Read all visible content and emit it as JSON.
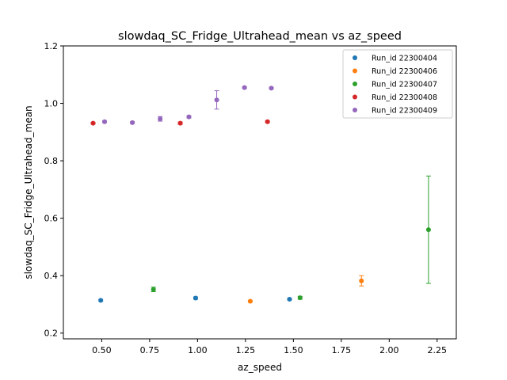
{
  "chart_data": {
    "type": "scatter",
    "title": "slowdaq_SC_Fridge_Ultrahead_mean vs az_speed",
    "xlabel": "az_speed",
    "ylabel": "slowdaq_SC_Fridge_Ultrahead_mean",
    "xlim": [
      0.3,
      2.35
    ],
    "ylim": [
      0.18,
      1.2
    ],
    "xticks": [
      "0.50",
      "0.75",
      "1.00",
      "1.25",
      "1.50",
      "1.75",
      "2.00",
      "2.25"
    ],
    "yticks": [
      "0.2",
      "0.4",
      "0.6",
      "0.8",
      "1.0",
      "1.2"
    ],
    "legend_position": "top-right",
    "grid": false,
    "series": [
      {
        "name": "Run_id 22300404",
        "color": "#1f77b4",
        "points": [
          {
            "x": 0.495,
            "y": 0.314,
            "err": 0.003
          },
          {
            "x": 0.99,
            "y": 0.322,
            "err": 0.004
          },
          {
            "x": 1.48,
            "y": 0.318,
            "err": 0.003
          }
        ]
      },
      {
        "name": "Run_id 22300406",
        "color": "#ff7f0e",
        "points": [
          {
            "x": 1.275,
            "y": 0.311,
            "err": 0.003
          },
          {
            "x": 1.855,
            "y": 0.382,
            "err": 0.018
          }
        ]
      },
      {
        "name": "Run_id 22300407",
        "color": "#2ca02c",
        "points": [
          {
            "x": 0.77,
            "y": 0.352,
            "err": 0.008
          },
          {
            "x": 1.535,
            "y": 0.323,
            "err": 0.005
          },
          {
            "x": 2.205,
            "y": 0.56,
            "err": 0.187
          }
        ]
      },
      {
        "name": "Run_id 22300408",
        "color": "#d62728",
        "points": [
          {
            "x": 0.455,
            "y": 0.931,
            "err": 0.003
          },
          {
            "x": 0.91,
            "y": 0.931,
            "err": 0.004
          },
          {
            "x": 1.365,
            "y": 0.936,
            "err": 0.003
          }
        ]
      },
      {
        "name": "Run_id 22300409",
        "color": "#9467bd",
        "points": [
          {
            "x": 0.515,
            "y": 0.936,
            "err": 0.003
          },
          {
            "x": 0.66,
            "y": 0.933,
            "err": 0.003
          },
          {
            "x": 0.805,
            "y": 0.946,
            "err": 0.008
          },
          {
            "x": 0.955,
            "y": 0.953,
            "err": 0.004
          },
          {
            "x": 1.1,
            "y": 1.012,
            "err": 0.032
          },
          {
            "x": 1.245,
            "y": 1.055,
            "err": 0.003
          },
          {
            "x": 1.385,
            "y": 1.053,
            "err": 0.003
          }
        ]
      }
    ]
  }
}
